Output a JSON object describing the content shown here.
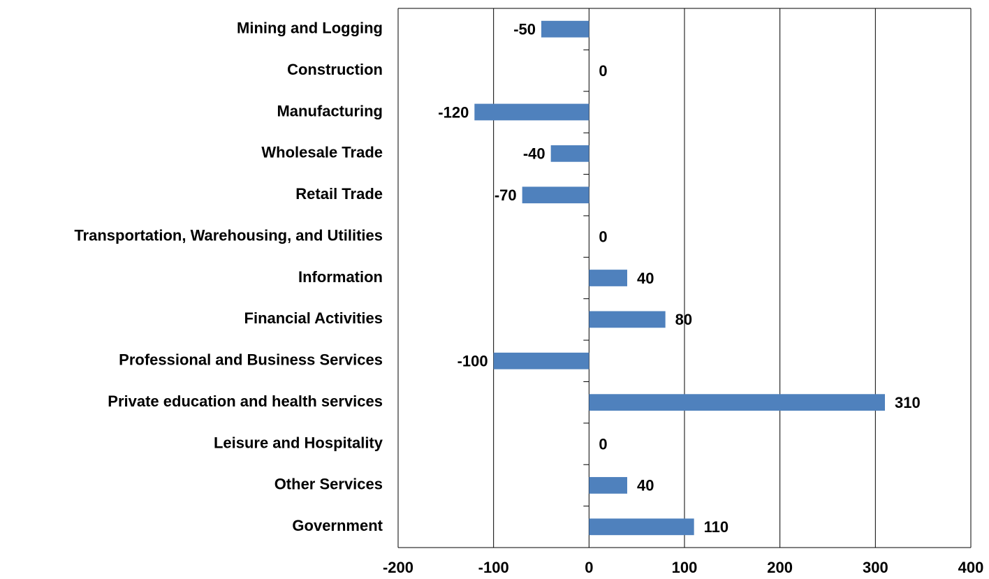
{
  "chart_data": {
    "type": "bar",
    "orientation": "horizontal",
    "categories": [
      "Mining and Logging",
      "Construction",
      "Manufacturing",
      "Wholesale Trade",
      "Retail Trade",
      "Transportation, Warehousing, and Utilities",
      "Information",
      "Financial Activities",
      "Professional and Business Services",
      "Private education and health services",
      "Leisure and Hospitality",
      "Other Services",
      "Government"
    ],
    "values": [
      -50,
      0,
      -120,
      -40,
      -70,
      0,
      40,
      80,
      -100,
      310,
      0,
      40,
      110
    ],
    "color": "#4f81bd",
    "xlim": [
      -200,
      400
    ],
    "xticks": [
      -200,
      -100,
      0,
      100,
      200,
      300,
      400
    ],
    "grid": true
  }
}
